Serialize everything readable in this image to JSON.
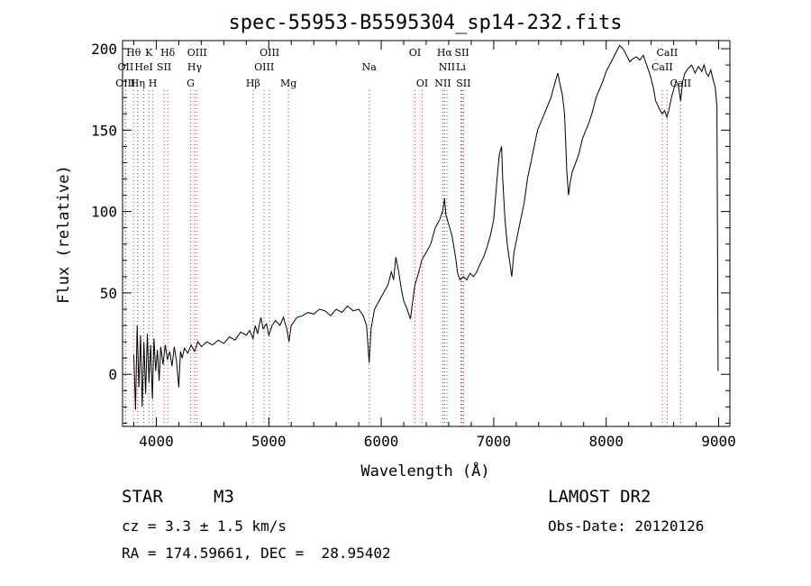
{
  "chart_data": {
    "type": "line",
    "title": "spec-55953-B5595304_sp14-232.fits",
    "xlabel": "Wavelength (Å)",
    "ylabel": "Flux (relative)",
    "xlim": [
      3700,
      9100
    ],
    "ylim": [
      -32,
      205
    ],
    "xticks": [
      4000,
      5000,
      6000,
      7000,
      8000,
      9000
    ],
    "yticks": [
      0,
      50,
      100,
      150,
      200
    ],
    "grid": false,
    "line_color": "#000000",
    "marker_color": "#b03030",
    "spectrum": [
      [
        3800,
        12
      ],
      [
        3815,
        -22
      ],
      [
        3830,
        30
      ],
      [
        3845,
        -8
      ],
      [
        3860,
        24
      ],
      [
        3875,
        -20
      ],
      [
        3890,
        20
      ],
      [
        3905,
        -12
      ],
      [
        3920,
        25
      ],
      [
        3935,
        -5
      ],
      [
        3950,
        18
      ],
      [
        3965,
        -15
      ],
      [
        3980,
        22
      ],
      [
        3995,
        2
      ],
      [
        4010,
        15
      ],
      [
        4025,
        -4
      ],
      [
        4040,
        17
      ],
      [
        4060,
        6
      ],
      [
        4080,
        18
      ],
      [
        4100,
        9
      ],
      [
        4120,
        14
      ],
      [
        4140,
        5
      ],
      [
        4160,
        17
      ],
      [
        4180,
        8
      ],
      [
        4200,
        -8
      ],
      [
        4215,
        14
      ],
      [
        4230,
        10
      ],
      [
        4250,
        16
      ],
      [
        4280,
        13
      ],
      [
        4310,
        18
      ],
      [
        4340,
        14
      ],
      [
        4370,
        20
      ],
      [
        4400,
        17
      ],
      [
        4450,
        20
      ],
      [
        4500,
        18
      ],
      [
        4550,
        21
      ],
      [
        4600,
        19
      ],
      [
        4650,
        23
      ],
      [
        4700,
        21
      ],
      [
        4750,
        26
      ],
      [
        4800,
        24
      ],
      [
        4830,
        27
      ],
      [
        4860,
        22
      ],
      [
        4880,
        30
      ],
      [
        4900,
        25
      ],
      [
        4930,
        35
      ],
      [
        4950,
        28
      ],
      [
        4980,
        31
      ],
      [
        5000,
        24
      ],
      [
        5030,
        30
      ],
      [
        5060,
        33
      ],
      [
        5100,
        30
      ],
      [
        5130,
        35
      ],
      [
        5160,
        28
      ],
      [
        5180,
        20
      ],
      [
        5200,
        30
      ],
      [
        5250,
        35
      ],
      [
        5300,
        36
      ],
      [
        5350,
        38
      ],
      [
        5400,
        37
      ],
      [
        5450,
        40
      ],
      [
        5500,
        39
      ],
      [
        5550,
        36
      ],
      [
        5600,
        40
      ],
      [
        5650,
        38
      ],
      [
        5700,
        42
      ],
      [
        5750,
        39
      ],
      [
        5800,
        40
      ],
      [
        5840,
        36
      ],
      [
        5870,
        30
      ],
      [
        5893,
        7
      ],
      [
        5910,
        28
      ],
      [
        5940,
        40
      ],
      [
        5980,
        45
      ],
      [
        6020,
        50
      ],
      [
        6060,
        55
      ],
      [
        6090,
        63
      ],
      [
        6110,
        58
      ],
      [
        6130,
        72
      ],
      [
        6150,
        65
      ],
      [
        6180,
        52
      ],
      [
        6200,
        45
      ],
      [
        6220,
        42
      ],
      [
        6240,
        38
      ],
      [
        6260,
        34
      ],
      [
        6280,
        45
      ],
      [
        6300,
        55
      ],
      [
        6330,
        62
      ],
      [
        6360,
        70
      ],
      [
        6400,
        75
      ],
      [
        6440,
        80
      ],
      [
        6480,
        90
      ],
      [
        6520,
        95
      ],
      [
        6545,
        100
      ],
      [
        6563,
        108
      ],
      [
        6575,
        98
      ],
      [
        6600,
        92
      ],
      [
        6630,
        85
      ],
      [
        6660,
        72
      ],
      [
        6680,
        62
      ],
      [
        6700,
        58
      ],
      [
        6730,
        60
      ],
      [
        6760,
        58
      ],
      [
        6790,
        62
      ],
      [
        6820,
        60
      ],
      [
        6850,
        63
      ],
      [
        6880,
        68
      ],
      [
        6910,
        72
      ],
      [
        6940,
        78
      ],
      [
        6970,
        85
      ],
      [
        7000,
        95
      ],
      [
        7030,
        120
      ],
      [
        7050,
        135
      ],
      [
        7070,
        140
      ],
      [
        7080,
        120
      ],
      [
        7100,
        95
      ],
      [
        7120,
        80
      ],
      [
        7140,
        70
      ],
      [
        7160,
        60
      ],
      [
        7180,
        75
      ],
      [
        7210,
        85
      ],
      [
        7240,
        95
      ],
      [
        7270,
        105
      ],
      [
        7300,
        120
      ],
      [
        7330,
        130
      ],
      [
        7360,
        140
      ],
      [
        7390,
        150
      ],
      [
        7420,
        155
      ],
      [
        7450,
        160
      ],
      [
        7480,
        165
      ],
      [
        7510,
        170
      ],
      [
        7540,
        178
      ],
      [
        7570,
        185
      ],
      [
        7590,
        178
      ],
      [
        7610,
        172
      ],
      [
        7630,
        160
      ],
      [
        7650,
        125
      ],
      [
        7665,
        110
      ],
      [
        7680,
        118
      ],
      [
        7700,
        125
      ],
      [
        7730,
        130
      ],
      [
        7760,
        136
      ],
      [
        7790,
        145
      ],
      [
        7820,
        150
      ],
      [
        7850,
        155
      ],
      [
        7880,
        162
      ],
      [
        7910,
        170
      ],
      [
        7940,
        175
      ],
      [
        7970,
        180
      ],
      [
        8000,
        186
      ],
      [
        8030,
        190
      ],
      [
        8060,
        194
      ],
      [
        8090,
        198
      ],
      [
        8120,
        202
      ],
      [
        8150,
        200
      ],
      [
        8180,
        196
      ],
      [
        8210,
        192
      ],
      [
        8240,
        194
      ],
      [
        8270,
        195
      ],
      [
        8300,
        193
      ],
      [
        8330,
        196
      ],
      [
        8360,
        190
      ],
      [
        8390,
        184
      ],
      [
        8420,
        176
      ],
      [
        8440,
        168
      ],
      [
        8460,
        165
      ],
      [
        8480,
        162
      ],
      [
        8500,
        160
      ],
      [
        8520,
        162
      ],
      [
        8540,
        158
      ],
      [
        8560,
        163
      ],
      [
        8580,
        170
      ],
      [
        8600,
        175
      ],
      [
        8620,
        180
      ],
      [
        8640,
        178
      ],
      [
        8662,
        168
      ],
      [
        8680,
        180
      ],
      [
        8700,
        185
      ],
      [
        8730,
        188
      ],
      [
        8760,
        190
      ],
      [
        8790,
        185
      ],
      [
        8820,
        189
      ],
      [
        8850,
        186
      ],
      [
        8870,
        190
      ],
      [
        8890,
        185
      ],
      [
        8910,
        183
      ],
      [
        8930,
        187
      ],
      [
        8950,
        181
      ],
      [
        8970,
        176
      ],
      [
        8985,
        165
      ],
      [
        8995,
        2
      ]
    ],
    "lines": [
      {
        "label": "Hθ",
        "wave": 3798,
        "row": 0
      },
      {
        "label": "OII",
        "wave": 3727,
        "row": 1
      },
      {
        "label": "OIII",
        "wave": 3726,
        "row": 2
      },
      {
        "label": "K",
        "wave": 3934,
        "row": 0
      },
      {
        "label": "HeI",
        "wave": 3889,
        "row": 1
      },
      {
        "label": "Hη",
        "wave": 3835,
        "row": 2
      },
      {
        "label": "SII",
        "wave": 4069,
        "row": 1
      },
      {
        "label": "H",
        "wave": 3969,
        "row": 2
      },
      {
        "label": "Hδ",
        "wave": 4102,
        "row": 0
      },
      {
        "label": "OIII",
        "wave": 4363,
        "row": 0
      },
      {
        "label": "Hγ",
        "wave": 4341,
        "row": 1
      },
      {
        "label": "G",
        "wave": 4305,
        "row": 2
      },
      {
        "label": "Hβ",
        "wave": 4861,
        "row": 2
      },
      {
        "label": "OIII",
        "wave": 5007,
        "row": 0
      },
      {
        "label": "OIII",
        "wave": 4959,
        "row": 1
      },
      {
        "label": "Mg",
        "wave": 5175,
        "row": 2
      },
      {
        "label": "Na",
        "wave": 5893,
        "row": 1
      },
      {
        "label": "OI",
        "wave": 6300,
        "row": 0
      },
      {
        "label": "OI",
        "wave": 6364,
        "row": 2
      },
      {
        "label": "Hα",
        "wave": 6563,
        "row": 0
      },
      {
        "label": "SII",
        "wave": 6717,
        "row": 0
      },
      {
        "label": "NII",
        "wave": 6584,
        "row": 1
      },
      {
        "label": "Li",
        "wave": 6708,
        "row": 1
      },
      {
        "label": "NII",
        "wave": 6548,
        "row": 2
      },
      {
        "label": "SII",
        "wave": 6731,
        "row": 2
      },
      {
        "label": "CaII",
        "wave": 8542,
        "row": 0
      },
      {
        "label": "CaII",
        "wave": 8498,
        "row": 1
      },
      {
        "label": "CaII",
        "wave": 8662,
        "row": 2
      }
    ]
  },
  "info": {
    "obj_class": "STAR",
    "obj_subclass": "M3",
    "survey": "LAMOST DR2",
    "cz": "cz = 3.3 ± 1.5 km/s",
    "obs_date": "Obs-Date: 20120126",
    "radec": "RA = 174.59661, DEC =  28.95402"
  }
}
